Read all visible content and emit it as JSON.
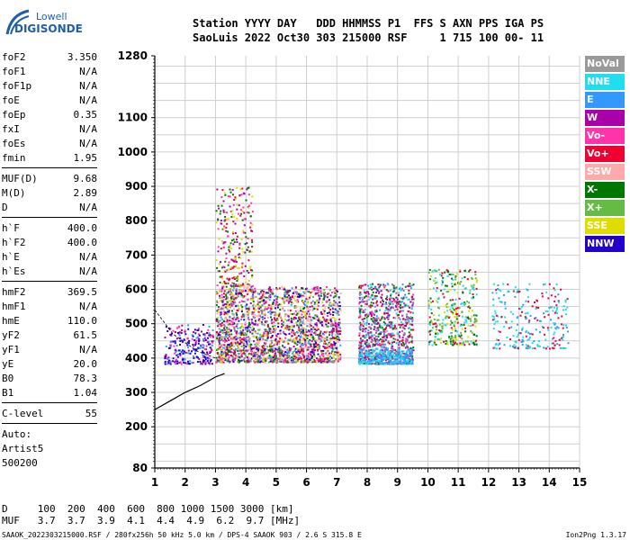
{
  "logo": {
    "line1": "Lowell",
    "line2": "DIGISONDE"
  },
  "header": {
    "line1": "Station YYYY DAY   DDD HHMMSS P1  FFS S AXN PPS IGA PS",
    "line2": "SaoLuis 2022 Oct30 303 215000 RSF     1 715 100 00- 11"
  },
  "params": {
    "group1": [
      {
        "k": "foF2",
        "v": "3.350"
      },
      {
        "k": "foF1",
        "v": "N/A"
      },
      {
        "k": "foF1p",
        "v": "N/A"
      },
      {
        "k": "foE",
        "v": "N/A"
      },
      {
        "k": "foEp",
        "v": "0.35"
      },
      {
        "k": "fxI",
        "v": "N/A"
      },
      {
        "k": "foEs",
        "v": "N/A"
      },
      {
        "k": "fmin",
        "v": "1.95"
      }
    ],
    "group2": [
      {
        "k": "MUF(D)",
        "v": "9.68"
      },
      {
        "k": "M(D)",
        "v": "2.89"
      },
      {
        "k": "D",
        "v": "N/A"
      }
    ],
    "group3": [
      {
        "k": "h`F",
        "v": "400.0"
      },
      {
        "k": "h`F2",
        "v": "400.0"
      },
      {
        "k": "h`E",
        "v": "N/A"
      },
      {
        "k": "h`Es",
        "v": "N/A"
      }
    ],
    "group4": [
      {
        "k": "hmF2",
        "v": "369.5"
      },
      {
        "k": "hmF1",
        "v": "N/A"
      },
      {
        "k": "hmE",
        "v": "110.0"
      },
      {
        "k": "yF2",
        "v": "61.5"
      },
      {
        "k": "yF1",
        "v": "N/A"
      },
      {
        "k": "yE",
        "v": "20.0"
      },
      {
        "k": "B0",
        "v": "78.3"
      },
      {
        "k": "B1",
        "v": "1.04"
      }
    ],
    "clevel": {
      "k": "C-level",
      "v": "55"
    },
    "auto": [
      "Auto:",
      "Artist5",
      "500200"
    ]
  },
  "legend": [
    {
      "label": "NoVal",
      "color": "#9a9a9a"
    },
    {
      "label": "NNE",
      "color": "#22ddee"
    },
    {
      "label": "E",
      "color": "#3399ff"
    },
    {
      "label": "W",
      "color": "#aa00aa"
    },
    {
      "label": "Vo-",
      "color": "#ff33aa"
    },
    {
      "label": "Vo+",
      "color": "#ee0033"
    },
    {
      "label": "SSW",
      "color": "#ffaaaa"
    },
    {
      "label": "X-",
      "color": "#007700"
    },
    {
      "label": "X+",
      "color": "#66bb44"
    },
    {
      "label": "SSE",
      "color": "#dddd00"
    },
    {
      "label": "NNW",
      "color": "#2200cc"
    }
  ],
  "chart_data": {
    "type": "scatter",
    "x_ticks": [
      "1",
      "2",
      "3",
      "4",
      "5",
      "6",
      "7",
      "8",
      "9",
      "10",
      "11",
      "12",
      "13",
      "14",
      "15"
    ],
    "y_ticks": [
      "1280",
      "1100",
      "1000",
      "900",
      "800",
      "700",
      "600",
      "500",
      "400",
      "300",
      "200",
      "80"
    ],
    "xlim": [
      1,
      15
    ],
    "ylim": [
      80,
      1280
    ],
    "grid": true,
    "echo_groups": [
      {
        "name": "NNE",
        "color": "#22ddee",
        "x": [
          12.0,
          14.6
        ],
        "y": [
          430,
          620
        ]
      },
      {
        "name": "E",
        "color": "#3399ff",
        "x": [
          7.7,
          9.5
        ],
        "y": [
          385,
          430
        ]
      },
      {
        "name": "W",
        "color": "#aa00aa",
        "x": [
          1.3,
          7.1
        ],
        "y": [
          380,
          700
        ]
      },
      {
        "name": "Vo-",
        "color": "#ff33aa",
        "x": [
          2.9,
          9.5
        ],
        "y": [
          400,
          650
        ]
      },
      {
        "name": "Vo+",
        "color": "#ee0033",
        "x": [
          2.9,
          11.5
        ],
        "y": [
          420,
          560
        ]
      },
      {
        "name": "SSW",
        "color": "#ffaaaa",
        "x": [
          3.0,
          7.0
        ],
        "y": [
          430,
          600
        ]
      },
      {
        "name": "X-",
        "color": "#007700",
        "x": [
          3.0,
          11.5
        ],
        "y": [
          380,
          600
        ]
      },
      {
        "name": "X+",
        "color": "#66bb44",
        "x": [
          3.0,
          11.5
        ],
        "y": [
          420,
          620
        ]
      },
      {
        "name": "SSE",
        "color": "#dddd00",
        "x": [
          3.0,
          7.0
        ],
        "y": [
          430,
          900
        ]
      },
      {
        "name": "NNW",
        "color": "#2200cc",
        "x": [
          1.3,
          4.0
        ],
        "y": [
          380,
          520
        ]
      }
    ],
    "trace_curve": {
      "x": [
        1.0,
        1.5,
        2.0,
        2.5,
        3.0,
        3.3
      ],
      "y": [
        250,
        275,
        300,
        320,
        345,
        355
      ]
    }
  },
  "muf_table": {
    "D": [
      "100",
      "200",
      "400",
      "600",
      "800",
      "1000",
      "1500",
      "3000"
    ],
    "MUF": [
      "3.7",
      "3.7",
      "3.9",
      "4.1",
      "4.4",
      "4.9",
      "6.2",
      "9.7"
    ],
    "line1": "D     100  200  400  600  800 1000 1500 3000 [km]",
    "line2": "MUF   3.7  3.7  3.9  4.1  4.4  4.9  6.2  9.7 [MHz]"
  },
  "footer": {
    "left": "SAAOK_2022303215000.RSF / 280fx256h 50 kHz 5.0 km / DPS-4 SAAOK 903 / 2.6 S 315.8 E",
    "right": "Ion2Png 1.3.17"
  }
}
